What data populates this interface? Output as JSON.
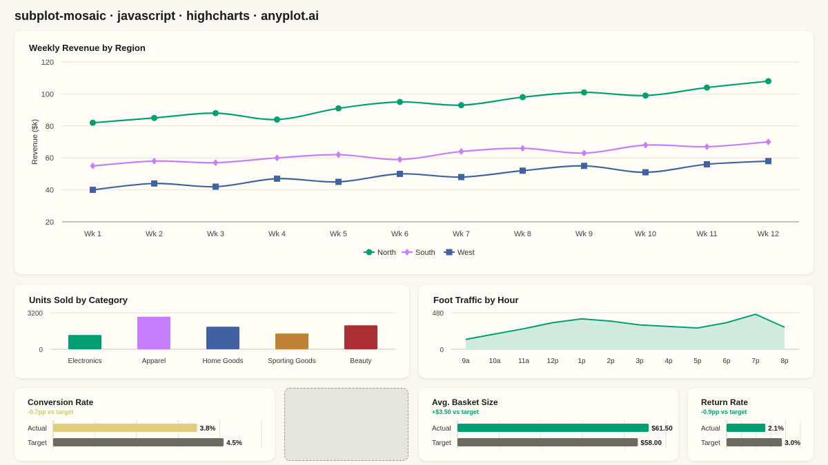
{
  "page": {
    "title": "subplot-mosaic · javascript · highcharts · anyplot.ai"
  },
  "colors": {
    "north": "#009e73",
    "south": "#c77dff",
    "west": "#4062a0",
    "electronics": "#009e73",
    "apparel": "#c77dff",
    "home_goods": "#4062a0",
    "sporting_goods": "#bf8236",
    "beauty": "#ab2f34",
    "area_fill": "#d0ebdd",
    "grey_bar": "#6b6a63",
    "gold_bar": "#e0cc7c",
    "positive": "#009e73",
    "negative": "#d9c46a"
  },
  "chart_data": [
    {
      "type": "line",
      "title": "Weekly Revenue by Region",
      "ylabel": "Revenue ($k)",
      "xlabel": "",
      "categories": [
        "Wk 1",
        "Wk 2",
        "Wk 3",
        "Wk 4",
        "Wk 5",
        "Wk 6",
        "Wk 7",
        "Wk 8",
        "Wk 9",
        "Wk 10",
        "Wk 11",
        "Wk 12"
      ],
      "series": [
        {
          "name": "North",
          "marker": "circle",
          "values": [
            82,
            85,
            88,
            84,
            91,
            95,
            93,
            98,
            101,
            99,
            104,
            108
          ]
        },
        {
          "name": "South",
          "marker": "diamond",
          "values": [
            55,
            58,
            57,
            60,
            62,
            59,
            64,
            66,
            63,
            68,
            67,
            70
          ]
        },
        {
          "name": "West",
          "marker": "square",
          "values": [
            40,
            44,
            42,
            47,
            45,
            50,
            48,
            52,
            55,
            51,
            56,
            58
          ]
        }
      ],
      "ylim": [
        20,
        120
      ],
      "yticks": [
        20,
        40,
        60,
        80,
        100,
        120
      ],
      "grid": true,
      "legend": "bottom-center"
    },
    {
      "type": "bar",
      "title": "Units Sold by Category",
      "categories": [
        "Electronics",
        "Apparel",
        "Home Goods",
        "Sporting Goods",
        "Beauty"
      ],
      "values": [
        1250,
        2850,
        1980,
        1380,
        2100
      ],
      "ylim": [
        0,
        3200
      ],
      "yticks": [
        0,
        3200
      ],
      "grid": true
    },
    {
      "type": "area",
      "title": "Foot Traffic by Hour",
      "categories": [
        "9a",
        "10a",
        "11a",
        "12p",
        "1p",
        "2p",
        "3p",
        "4p",
        "5p",
        "6p",
        "7p",
        "8p"
      ],
      "values": [
        130,
        200,
        270,
        350,
        400,
        370,
        320,
        300,
        280,
        350,
        460,
        290
      ],
      "ylim": [
        0,
        480
      ],
      "yticks": [
        0,
        480
      ],
      "grid": true
    },
    {
      "type": "bar",
      "title": "Conversion Rate",
      "categories": [
        "Actual",
        "Target"
      ],
      "values": [
        3.8,
        4.5
      ],
      "labels": [
        "3.8%",
        "4.5%"
      ],
      "orientation": "horizontal",
      "xlim": [
        0,
        5.5
      ]
    },
    {
      "type": "bar",
      "title": "Avg. Basket Size",
      "categories": [
        "Actual",
        "Target"
      ],
      "values": [
        61.5,
        58.0
      ],
      "labels": [
        "$61.50",
        "$58.00"
      ],
      "orientation": "horizontal",
      "xlim": [
        0,
        67
      ]
    },
    {
      "type": "bar",
      "title": "Return Rate",
      "categories": [
        "Actual",
        "Target"
      ],
      "values": [
        2.1,
        3.0
      ],
      "labels": [
        "2.1%",
        "3.0%"
      ],
      "orientation": "horizontal",
      "xlim": [
        0,
        4
      ]
    }
  ],
  "kpis": {
    "conversion": {
      "title": "Conversion Rate",
      "delta": "-0.7pp vs target"
    },
    "basket": {
      "title": "Avg. Basket Size",
      "delta": "+$3.50 vs target"
    },
    "return": {
      "title": "Return Rate",
      "delta": "-0.9pp vs target"
    }
  }
}
